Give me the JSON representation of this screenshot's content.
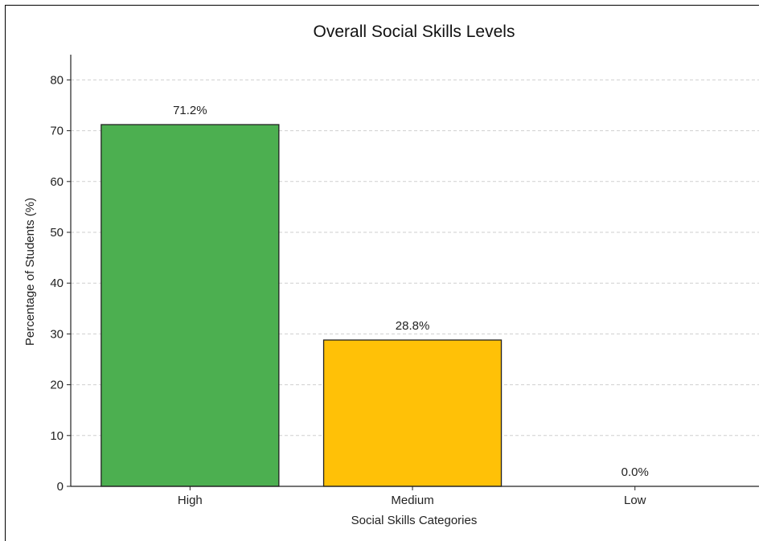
{
  "chart_data": {
    "type": "bar",
    "title": "Overall Social Skills Levels",
    "xlabel": "Social Skills Categories",
    "ylabel": "Percentage of Students (%)",
    "categories": [
      "High",
      "Medium",
      "Low"
    ],
    "values": [
      71.2,
      28.8,
      0.0
    ],
    "value_labels": [
      "71.2%",
      "28.8%",
      "0.0%"
    ],
    "bar_colors": [
      "#4caf50",
      "#ffc107",
      "#f44336"
    ],
    "ylim": [
      0,
      85
    ],
    "yticks": [
      0,
      10,
      20,
      30,
      40,
      50,
      60,
      70,
      80
    ],
    "grid": "y-axis dashed",
    "legend": "none"
  }
}
